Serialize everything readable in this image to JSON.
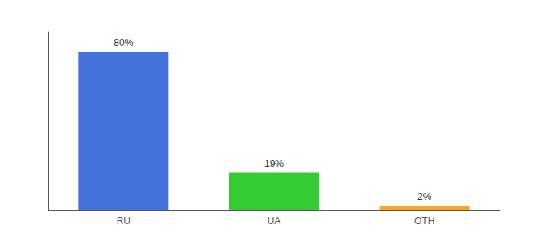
{
  "chart_data": {
    "type": "bar",
    "categories": [
      "RU",
      "UA",
      "OTH"
    ],
    "values": [
      80,
      19,
      2
    ],
    "colors": [
      "#4472db",
      "#33cc33",
      "#f5a623"
    ],
    "data_labels": true,
    "value_labels": [
      "80%",
      "19%",
      "2%"
    ],
    "ylim": [
      0,
      90
    ],
    "yticks": [],
    "tick_labels": "x",
    "grid": false
  }
}
